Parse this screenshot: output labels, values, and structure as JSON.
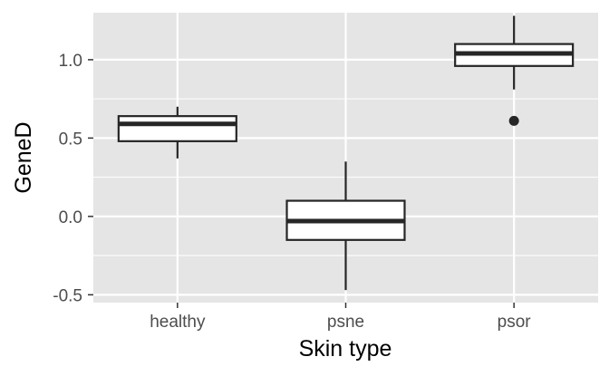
{
  "chart_data": {
    "type": "boxplot",
    "xlabel": "Skin type",
    "ylabel": "GeneD",
    "ylim": [
      -0.55,
      1.3
    ],
    "y_ticks": [
      -0.5,
      0.0,
      0.5,
      1.0
    ],
    "y_tick_labels": [
      "-0.5",
      "0.0",
      "0.5",
      "1.0"
    ],
    "y_minor_ticks": [
      -0.25,
      0.25,
      0.75
    ],
    "grid": true,
    "categories": [
      "healthy",
      "psne",
      "psor"
    ],
    "boxes": [
      {
        "category": "healthy",
        "min": 0.37,
        "q1": 0.48,
        "median": 0.59,
        "q3": 0.64,
        "max": 0.7,
        "outliers": []
      },
      {
        "category": "psne",
        "min": -0.47,
        "q1": -0.15,
        "median": -0.03,
        "q3": 0.1,
        "max": 0.35,
        "outliers": []
      },
      {
        "category": "psor",
        "min": 0.81,
        "q1": 0.96,
        "median": 1.04,
        "q3": 1.1,
        "max": 1.28,
        "outliers": [
          0.61
        ]
      }
    ],
    "colors": {
      "panel": "#e5e5e5",
      "grid": "#ffffff",
      "box_fill": "#ffffff",
      "box_line": "#262626"
    }
  }
}
